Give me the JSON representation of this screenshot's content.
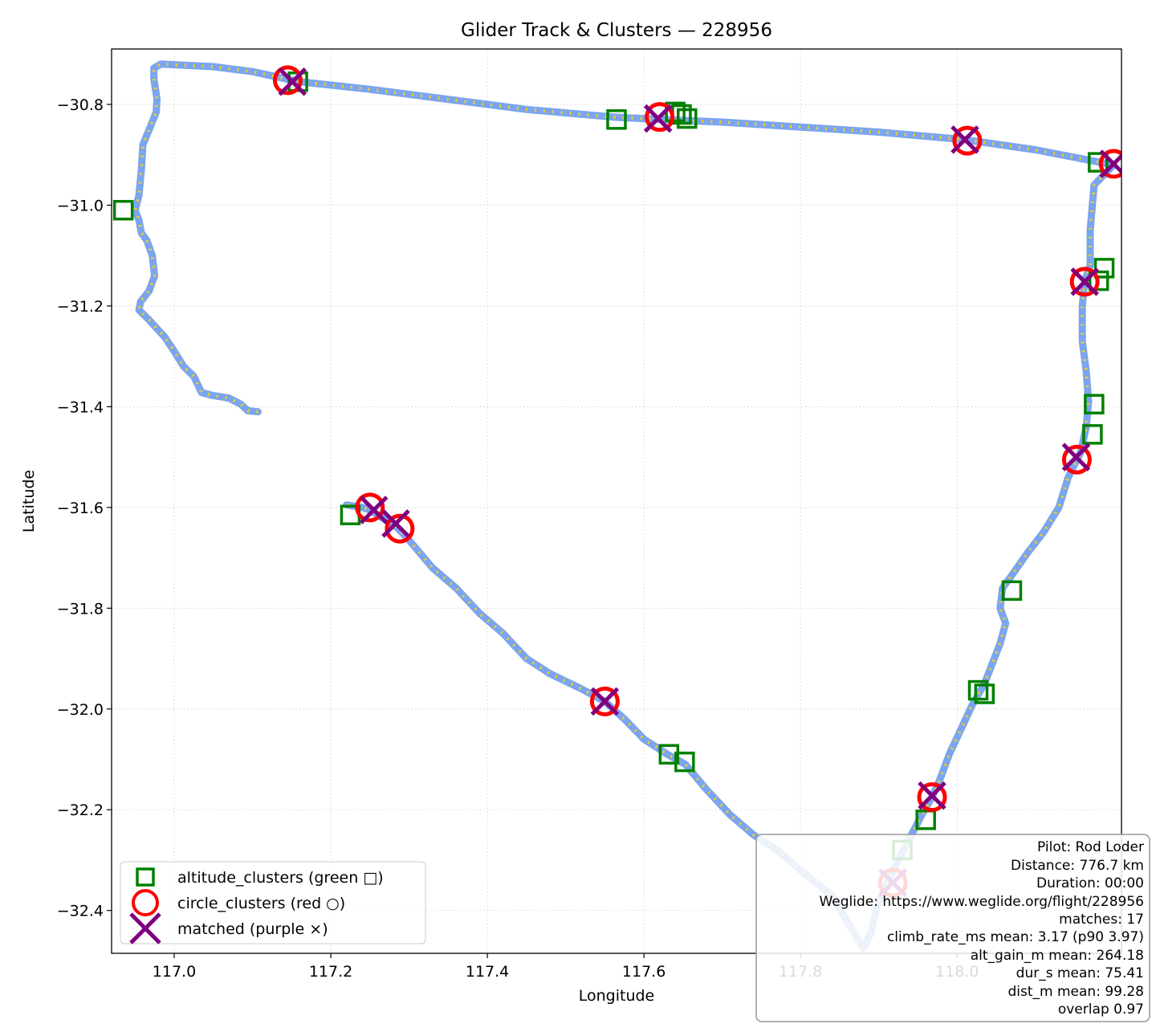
{
  "chart_data": {
    "type": "scatter",
    "title": "Glider Track & Clusters — 228956",
    "xlabel": "Longitude",
    "ylabel": "Latitude",
    "xlim": [
      116.92,
      118.21
    ],
    "ylim": [
      -32.485,
      -30.69
    ],
    "x_ticks": [
      117.0,
      117.2,
      117.4,
      117.6,
      117.8,
      118.0
    ],
    "x_tick_labels": [
      "117.0",
      "117.2",
      "117.4",
      "117.6",
      "117.8",
      "118.0"
    ],
    "y_ticks": [
      -30.8,
      -31.0,
      -31.2,
      -31.4,
      -31.6,
      -31.8,
      -32.0,
      -32.2,
      -32.4
    ],
    "y_tick_labels": [
      "−30.8",
      "−31.0",
      "−31.2",
      "−31.4",
      "−31.6",
      "−31.8",
      "−32.0",
      "−32.2",
      "−32.4"
    ],
    "grid": true,
    "legend_position": "lower-left",
    "colors": {
      "track": "#6495ED",
      "track_points": "#FFD700",
      "altitude_clusters": "#008000",
      "circle_clusters": "#FF0000",
      "matched": "#800080"
    },
    "track": [
      [
        117.107,
        -31.41
      ],
      [
        117.094,
        -31.408
      ],
      [
        117.085,
        -31.395
      ],
      [
        117.07,
        -31.383
      ],
      [
        117.05,
        -31.378
      ],
      [
        117.035,
        -31.372
      ],
      [
        117.025,
        -31.34
      ],
      [
        117.012,
        -31.32
      ],
      [
        117.0,
        -31.29
      ],
      [
        116.988,
        -31.262
      ],
      [
        116.968,
        -31.228
      ],
      [
        116.955,
        -31.208
      ],
      [
        116.957,
        -31.192
      ],
      [
        116.968,
        -31.17
      ],
      [
        116.975,
        -31.14
      ],
      [
        116.972,
        -31.1
      ],
      [
        116.965,
        -31.07
      ],
      [
        116.958,
        -31.055
      ],
      [
        116.955,
        -31.03
      ],
      [
        116.95,
        -31.01
      ],
      [
        116.955,
        -30.98
      ],
      [
        116.958,
        -30.93
      ],
      [
        116.96,
        -30.88
      ],
      [
        116.968,
        -30.85
      ],
      [
        116.977,
        -30.815
      ],
      [
        116.978,
        -30.79
      ],
      [
        116.974,
        -30.75
      ],
      [
        116.974,
        -30.728
      ],
      [
        116.983,
        -30.72
      ],
      [
        117.05,
        -30.725
      ],
      [
        117.1,
        -30.735
      ],
      [
        117.16,
        -30.755
      ],
      [
        117.25,
        -30.77
      ],
      [
        117.35,
        -30.79
      ],
      [
        117.45,
        -30.81
      ],
      [
        117.56,
        -30.825
      ],
      [
        117.62,
        -30.83
      ],
      [
        117.7,
        -30.835
      ],
      [
        117.8,
        -30.845
      ],
      [
        117.9,
        -30.855
      ],
      [
        118.01,
        -30.87
      ],
      [
        118.1,
        -30.89
      ],
      [
        118.2,
        -30.92
      ],
      [
        118.175,
        -30.96
      ],
      [
        118.17,
        -31.05
      ],
      [
        118.17,
        -31.12
      ],
      [
        118.163,
        -31.15
      ],
      [
        118.16,
        -31.2
      ],
      [
        118.16,
        -31.27
      ],
      [
        118.165,
        -31.33
      ],
      [
        118.168,
        -31.39
      ],
      [
        118.165,
        -31.44
      ],
      [
        118.158,
        -31.49
      ],
      [
        118.142,
        -31.54
      ],
      [
        118.13,
        -31.6
      ],
      [
        118.11,
        -31.65
      ],
      [
        118.09,
        -31.69
      ],
      [
        118.072,
        -31.73
      ],
      [
        118.058,
        -31.76
      ],
      [
        118.055,
        -31.8
      ],
      [
        118.062,
        -31.83
      ],
      [
        118.055,
        -31.87
      ],
      [
        118.045,
        -31.91
      ],
      [
        118.035,
        -31.95
      ],
      [
        118.02,
        -31.99
      ],
      [
        118.005,
        -32.04
      ],
      [
        117.99,
        -32.09
      ],
      [
        117.978,
        -32.14
      ],
      [
        117.968,
        -32.175
      ],
      [
        117.955,
        -32.21
      ],
      [
        117.935,
        -32.27
      ],
      [
        117.915,
        -32.33
      ],
      [
        117.898,
        -32.39
      ],
      [
        117.89,
        -32.445
      ],
      [
        117.88,
        -32.475
      ],
      [
        117.84,
        -32.37
      ],
      [
        117.8,
        -32.32
      ],
      [
        117.77,
        -32.28
      ],
      [
        117.74,
        -32.25
      ],
      [
        117.71,
        -32.21
      ],
      [
        117.68,
        -32.16
      ],
      [
        117.653,
        -32.11
      ],
      [
        117.63,
        -32.09
      ],
      [
        117.6,
        -32.06
      ],
      [
        117.575,
        -32.02
      ],
      [
        117.55,
        -31.985
      ],
      [
        117.52,
        -31.96
      ],
      [
        117.48,
        -31.93
      ],
      [
        117.45,
        -31.9
      ],
      [
        117.42,
        -31.85
      ],
      [
        117.39,
        -31.81
      ],
      [
        117.36,
        -31.76
      ],
      [
        117.33,
        -31.72
      ],
      [
        117.3,
        -31.665
      ],
      [
        117.285,
        -31.64
      ],
      [
        117.27,
        -31.625
      ],
      [
        117.25,
        -31.605
      ],
      [
        117.24,
        -31.6
      ],
      [
        117.22,
        -31.595
      ]
    ],
    "altitude_clusters": [
      [
        116.935,
        -31.01
      ],
      [
        117.158,
        -30.755
      ],
      [
        117.565,
        -30.83
      ],
      [
        117.64,
        -30.815
      ],
      [
        117.648,
        -30.82
      ],
      [
        117.655,
        -30.828
      ],
      [
        118.18,
        -30.915
      ],
      [
        118.188,
        -31.125
      ],
      [
        118.181,
        -31.15
      ],
      [
        118.175,
        -31.395
      ],
      [
        118.173,
        -31.455
      ],
      [
        118.07,
        -31.765
      ],
      [
        118.027,
        -31.963
      ],
      [
        118.035,
        -31.97
      ],
      [
        117.632,
        -32.09
      ],
      [
        117.652,
        -32.105
      ],
      [
        117.96,
        -32.22
      ],
      [
        117.93,
        -32.28
      ],
      [
        117.225,
        -31.615
      ]
    ],
    "circle_clusters": [
      [
        117.145,
        -30.752
      ],
      [
        117.62,
        -30.825
      ],
      [
        118.013,
        -30.872
      ],
      [
        118.2,
        -30.918
      ],
      [
        118.163,
        -31.152
      ],
      [
        118.153,
        -31.505
      ],
      [
        117.25,
        -31.6
      ],
      [
        117.288,
        -31.642
      ],
      [
        117.55,
        -31.985
      ],
      [
        117.968,
        -32.175
      ],
      [
        117.918,
        -32.345
      ]
    ],
    "matched": [
      [
        117.151,
        -30.755
      ],
      [
        117.618,
        -30.828
      ],
      [
        118.01,
        -30.87
      ],
      [
        118.2,
        -30.918
      ],
      [
        118.163,
        -31.152
      ],
      [
        118.152,
        -31.5
      ],
      [
        117.255,
        -31.605
      ],
      [
        117.283,
        -31.632
      ],
      [
        117.55,
        -31.985
      ],
      [
        117.968,
        -32.172
      ],
      [
        117.918,
        -32.345
      ]
    ],
    "legend": [
      {
        "marker": "square",
        "label": "altitude_clusters (green □)"
      },
      {
        "marker": "circle",
        "label": "circle_clusters (red ○)"
      },
      {
        "marker": "x",
        "label": "matched (purple ×)"
      }
    ],
    "info_box": [
      "Pilot: Rod Loder",
      "Distance: 776.7 km",
      "Duration: 00:00",
      "Weglide: https://www.weglide.org/flight/228956",
      "matches: 17",
      "climb_rate_ms mean: 3.17 (p90 3.97)",
      "alt_gain_m mean: 264.18",
      "dur_s mean: 75.41",
      "dist_m mean: 99.28",
      "overlap 0.97"
    ]
  }
}
